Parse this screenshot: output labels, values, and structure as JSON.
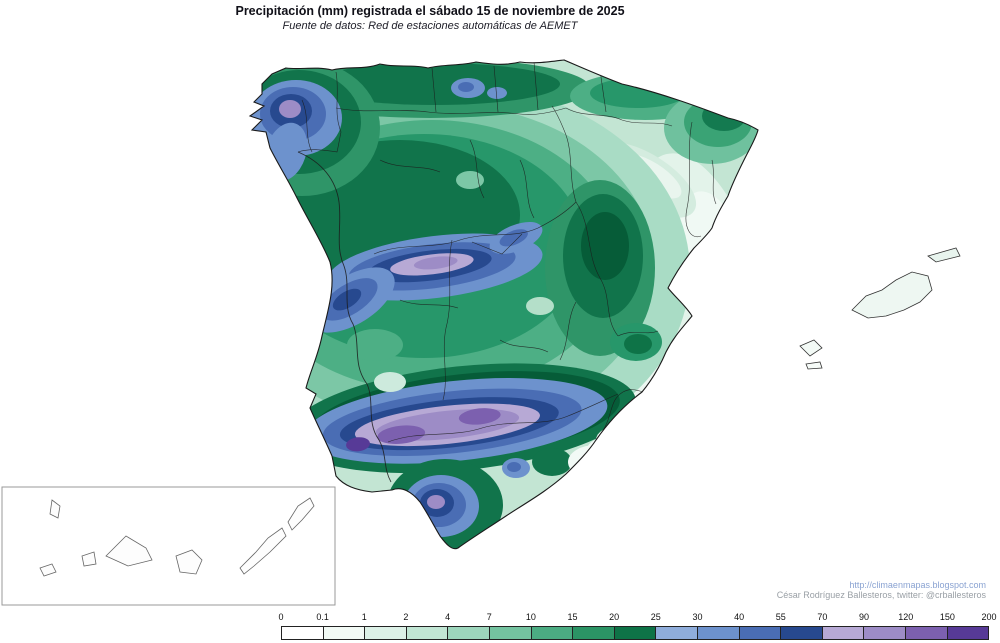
{
  "header": {
    "title": "Precipitación (mm) registrada el sábado 15 de noviembre de 2025",
    "subtitle": "Fuente de datos: Red de estaciones automáticas de AEMET"
  },
  "credits": {
    "url": "http://climaenmapas.blogspot.com",
    "author": "César Rodríguez Ballesteros, twitter: @crballesteros"
  },
  "colorbar": {
    "unit": "mm",
    "labels": [
      "0",
      "0.1",
      "1",
      "2",
      "4",
      "7",
      "10",
      "15",
      "20",
      "25",
      "30",
      "40",
      "55",
      "70",
      "90",
      "120",
      "150",
      "200"
    ],
    "colors": [
      "#ffffff",
      "#f2faf5",
      "#dcf1e7",
      "#c1e6d4",
      "#9dd6bc",
      "#74c3a0",
      "#4bac82",
      "#2b9465",
      "#0e7347",
      "#8faddb",
      "#6d92cd",
      "#4a6db4",
      "#27498f",
      "#b7a9d5",
      "#9d8cc6",
      "#7c60af",
      "#573a97"
    ]
  }
}
